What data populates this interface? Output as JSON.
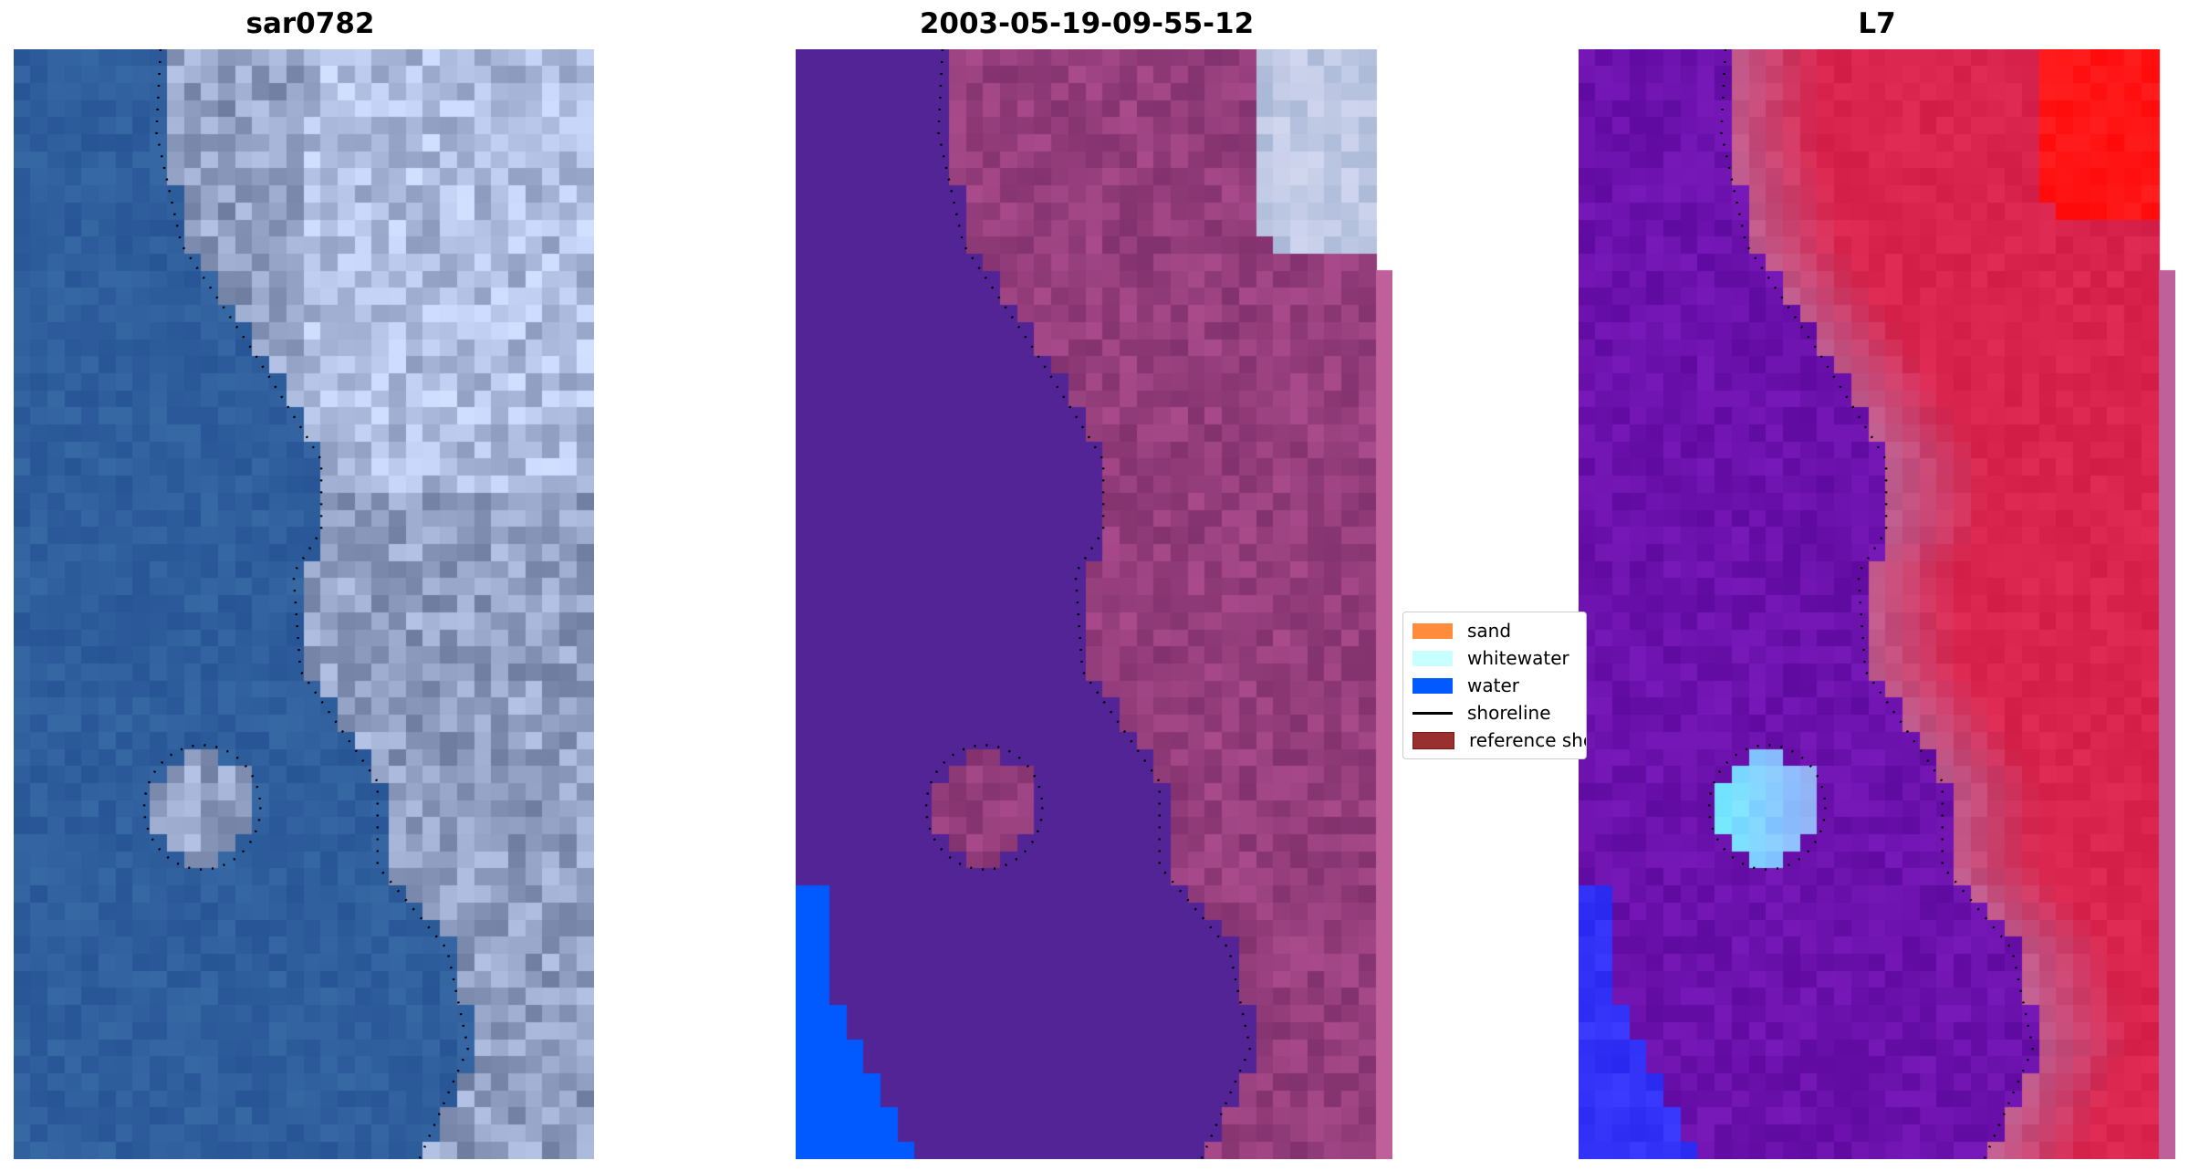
{
  "panels": [
    {
      "title": "sar0782",
      "style": "rgb"
    },
    {
      "title": "2003-05-19-09-55-12",
      "style": "classified"
    },
    {
      "title": "L7",
      "style": "index"
    }
  ],
  "legend": {
    "items": [
      {
        "label": "sand",
        "color": "#ff8c3c"
      },
      {
        "label": "whitewater",
        "color": "#c8ffff"
      },
      {
        "label": "water",
        "color": "#005aff"
      },
      {
        "label": "shoreline",
        "color": "#000000",
        "kind": "line"
      },
      {
        "label": "reference shoreline",
        "color": "#992f2f"
      }
    ]
  }
}
